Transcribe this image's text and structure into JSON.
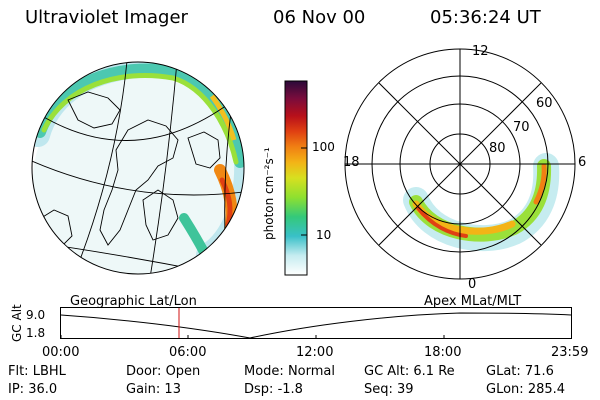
{
  "header": {
    "title": "Ultraviolet Imager",
    "date": "06 Nov 00",
    "time": "05:36:24 UT"
  },
  "colorbar": {
    "unit_label": "photon cm⁻²s⁻¹",
    "ticks": [
      "100",
      "10"
    ],
    "colors": [
      "#ffffff",
      "#c6ecf0",
      "#39c0c8",
      "#34c97a",
      "#8ee030",
      "#d7e020",
      "#f3b416",
      "#f08013",
      "#e04012",
      "#b8101a",
      "#7a0c3c",
      "#2b0a3a"
    ]
  },
  "geographic_map": {
    "label": "Geographic Lat/Lon"
  },
  "polar_plot": {
    "label": "Apex MLat/MLT",
    "mlt_labels": [
      "12",
      "6",
      "0",
      "18"
    ],
    "lat_labels": [
      "60",
      "70",
      "80"
    ]
  },
  "altitude_plot": {
    "ylabel": "GC Alt",
    "yticks": [
      "9.0",
      "1.8"
    ],
    "xticks": [
      "00:00",
      "06:00",
      "12:00",
      "18:00",
      "23:59"
    ],
    "current_marker": "05:36"
  },
  "status": {
    "filter_label": "Flt:",
    "filter_value": "LBHL",
    "ip_label": "IP:",
    "ip_value": "36.0",
    "door_label": "Door:",
    "door_value": "Open",
    "gain_label": "Gain:",
    "gain_value": "13",
    "mode_label": "Mode:",
    "mode_value": "Normal",
    "dsp_label": "Dsp:",
    "dsp_value": "-1.8",
    "gcalt_label": "GC Alt:",
    "gcalt_value": "6.1 Re",
    "seq_label": "Seq:",
    "seq_value": "39",
    "glat_label": "GLat:",
    "glat_value": "71.6",
    "glon_label": "GLon:",
    "glon_value": "285.4"
  }
}
